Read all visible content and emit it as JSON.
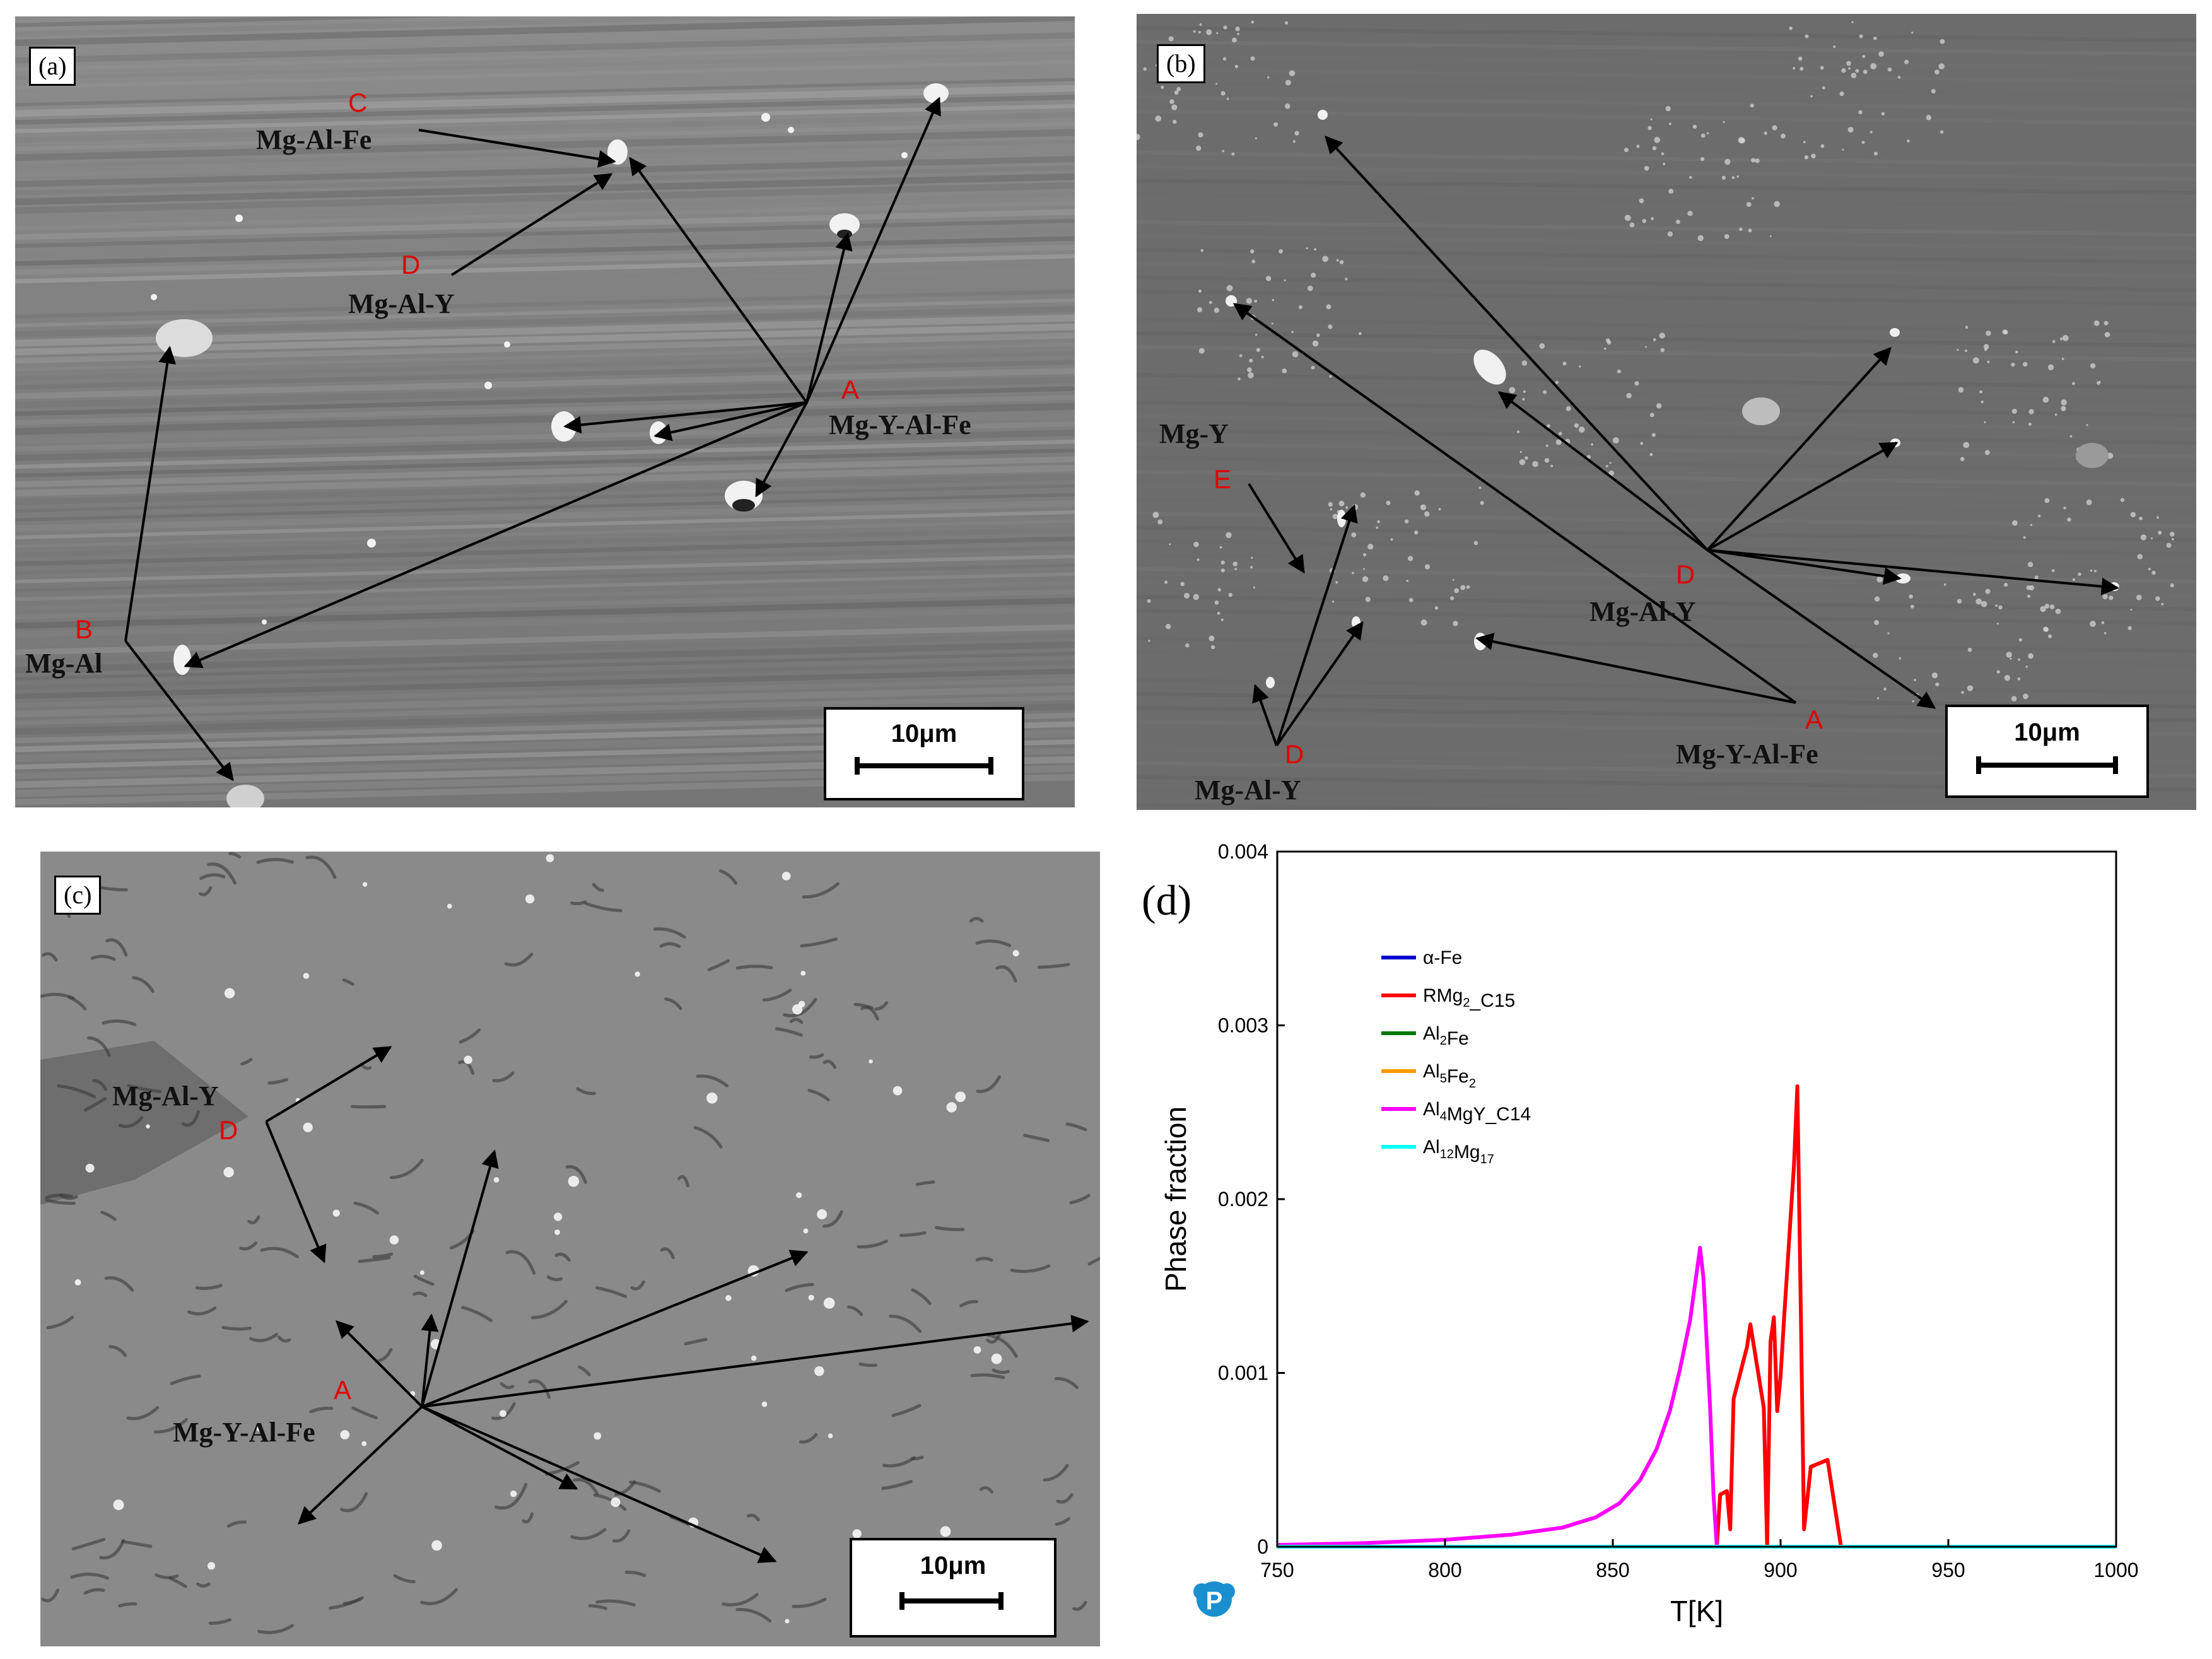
{
  "panels": {
    "a": {
      "label": "(a)",
      "scale": "10μm",
      "annotations": [
        {
          "letter": "C",
          "phase": "Mg-Al-Fe"
        },
        {
          "letter": "D",
          "phase": "Mg-Al-Y"
        },
        {
          "letter": "A",
          "phase": "Mg-Y-Al-Fe"
        },
        {
          "letter": "B",
          "phase": "Mg-Al"
        }
      ]
    },
    "b": {
      "label": "(b)",
      "scale": "10μm",
      "annotations": [
        {
          "letter": "E",
          "phase": "Mg-Y"
        },
        {
          "letter": "D",
          "phase": "Mg-Al-Y"
        },
        {
          "letter": "D",
          "phase": "Mg-Al-Y"
        },
        {
          "letter": "A",
          "phase": "Mg-Y-Al-Fe"
        }
      ]
    },
    "c": {
      "label": "(c)",
      "scale": "10μm",
      "annotations": [
        {
          "letter": "D",
          "phase": "Mg-Al-Y"
        },
        {
          "letter": "A",
          "phase": "Mg-Y-Al-Fe"
        }
      ]
    },
    "d": {
      "label": "(d)"
    }
  },
  "chart_data": {
    "type": "line",
    "xlabel": "T[K]",
    "ylabel": "Phase fraction",
    "xlim": [
      750,
      1000
    ],
    "ylim": [
      0,
      0.004
    ],
    "xticks": [
      "750",
      "800",
      "850",
      "900",
      "950",
      "1000"
    ],
    "yticks": [
      "0",
      "0.001",
      "0.002",
      "0.003",
      "0.004"
    ],
    "legend_position": "top-left",
    "series": [
      {
        "name": "α-Fe",
        "color": "#0000cc",
        "x": [
          750,
          1000
        ],
        "y": [
          0,
          0
        ]
      },
      {
        "name": "RMg2_C15",
        "color": "#ff0000",
        "x": [
          881,
          882,
          884,
          885,
          886,
          890,
          891,
          895,
          896,
          897,
          898,
          899,
          900,
          901,
          904,
          905,
          906,
          907,
          909,
          914,
          918,
          1000
        ],
        "y": [
          0,
          0.0003,
          0.00032,
          0.0001,
          0.00085,
          0.00115,
          0.00128,
          0.0008,
          0.0,
          0.00118,
          0.00132,
          0.00078,
          0.00098,
          0.0013,
          0.0022,
          0.00265,
          0.0014,
          0.0001,
          0.00046,
          0.0005,
          0,
          0
        ]
      },
      {
        "name": "Al2Fe",
        "color": "#007700",
        "x": [
          750,
          1000
        ],
        "y": [
          0,
          0
        ]
      },
      {
        "name": "Al5Fe2",
        "color": "#ff9900",
        "x": [
          750,
          1000
        ],
        "y": [
          0,
          0
        ]
      },
      {
        "name": "Al4MgY_C14",
        "color": "#ff00ff",
        "x": [
          750,
          775,
          800,
          820,
          835,
          845,
          852,
          858,
          863,
          867,
          870,
          873,
          875,
          876,
          877,
          879,
          880,
          881
        ],
        "y": [
          1e-05,
          2e-05,
          4e-05,
          7e-05,
          0.00011,
          0.00017,
          0.00025,
          0.00038,
          0.00056,
          0.00078,
          0.00102,
          0.0013,
          0.00158,
          0.00172,
          0.00155,
          0.0008,
          0.0003,
          0
        ]
      },
      {
        "name": "Al12Mg17",
        "color": "#00ffff",
        "x": [
          750,
          1000
        ],
        "y": [
          0,
          0
        ]
      }
    ]
  }
}
